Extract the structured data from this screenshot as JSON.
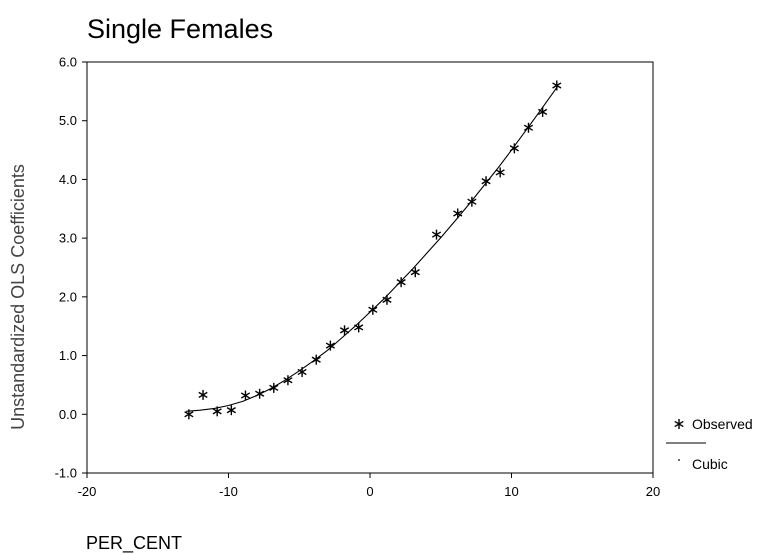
{
  "chart_data": {
    "type": "scatter",
    "title": "Single Females",
    "xlabel": "PER_CENT",
    "ylabel": "Unstandardized OLS Coefficients",
    "xlim": [
      -20,
      20
    ],
    "ylim": [
      -1.0,
      6.0
    ],
    "x_ticks": [
      -20,
      -10,
      0,
      10,
      20
    ],
    "x_tick_labels": [
      "-20",
      "-10",
      "0",
      "10",
      "20"
    ],
    "y_ticks": [
      -1.0,
      0.0,
      1.0,
      2.0,
      3.0,
      4.0,
      5.0,
      6.0
    ],
    "y_tick_labels": [
      "-1.0",
      "0.0",
      "1.0",
      "2.0",
      "3.0",
      "4.0",
      "5.0",
      "6.0"
    ],
    "grid": false,
    "legend_position": "right-bottom",
    "series": [
      {
        "name": "Observed",
        "kind": "scatter",
        "marker": "asterisk",
        "points": [
          [
            -12.8,
            0.0
          ],
          [
            -11.8,
            0.33
          ],
          [
            -10.8,
            0.05
          ],
          [
            -9.8,
            0.07
          ],
          [
            -8.8,
            0.32
          ],
          [
            -7.8,
            0.35
          ],
          [
            -6.8,
            0.45
          ],
          [
            -5.8,
            0.58
          ],
          [
            -4.8,
            0.72
          ],
          [
            -3.8,
            0.93
          ],
          [
            -2.8,
            1.17
          ],
          [
            -1.8,
            1.43
          ],
          [
            -0.8,
            1.48
          ],
          [
            0.2,
            1.78
          ],
          [
            1.2,
            1.95
          ],
          [
            2.2,
            2.25
          ],
          [
            3.2,
            2.42
          ],
          [
            4.7,
            3.06
          ],
          [
            6.2,
            3.42
          ],
          [
            7.2,
            3.62
          ],
          [
            8.2,
            3.97
          ],
          [
            9.2,
            4.12
          ],
          [
            10.2,
            4.53
          ],
          [
            11.2,
            4.88
          ],
          [
            12.2,
            5.15
          ],
          [
            13.2,
            5.6
          ]
        ]
      },
      {
        "name": "Cubic",
        "kind": "line",
        "points": [
          [
            -13.0,
            0.05
          ],
          [
            -12.0,
            0.07
          ],
          [
            -11.0,
            0.1
          ],
          [
            -10.0,
            0.15
          ],
          [
            -9.0,
            0.22
          ],
          [
            -8.0,
            0.32
          ],
          [
            -7.0,
            0.44
          ],
          [
            -6.0,
            0.58
          ],
          [
            -5.0,
            0.74
          ],
          [
            -4.0,
            0.91
          ],
          [
            -3.0,
            1.09
          ],
          [
            -2.0,
            1.3
          ],
          [
            -1.0,
            1.51
          ],
          [
            0.0,
            1.74
          ],
          [
            1.0,
            1.97
          ],
          [
            2.0,
            2.22
          ],
          [
            3.0,
            2.47
          ],
          [
            4.0,
            2.74
          ],
          [
            5.0,
            3.01
          ],
          [
            6.0,
            3.29
          ],
          [
            7.0,
            3.58
          ],
          [
            8.0,
            3.88
          ],
          [
            9.0,
            4.18
          ],
          [
            10.0,
            4.5
          ],
          [
            11.0,
            4.83
          ],
          [
            12.0,
            5.16
          ],
          [
            13.0,
            5.5
          ],
          [
            13.3,
            5.6
          ]
        ]
      }
    ]
  }
}
